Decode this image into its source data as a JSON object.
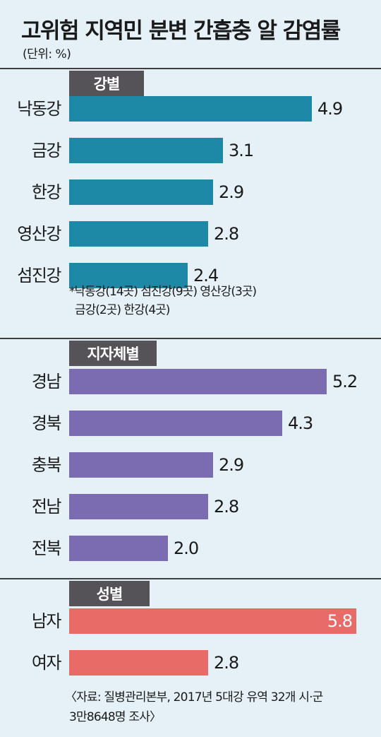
{
  "title": "고위험 지역민 분변 간흡충 알 감염률",
  "unit": "(단위: %)",
  "note_line1": "*낙동강(14곳) 섬진강(9곳) 영산강(3곳)",
  "note_line2": "금강(2곳) 한강(4곳)",
  "source_line1": "〈자료: 질병관리본부, 2017년 5대강 유역 32개 시·군",
  "source_line2": "3만8648명 조사〉",
  "colors": {
    "river": "#1e89a6",
    "region": "#7b6bb0",
    "gender": "#e86b67",
    "tag": "#555358",
    "background": "#e5f1f7"
  },
  "chart_data": [
    {
      "type": "bar",
      "orientation": "horizontal",
      "group": "강별",
      "categories": [
        "낙동강",
        "금강",
        "한강",
        "영산강",
        "섬진강"
      ],
      "values": [
        4.9,
        3.1,
        2.9,
        2.8,
        2.4
      ],
      "value_labels": [
        "4.9",
        "3.1",
        "2.9",
        "2.8",
        "2.4"
      ],
      "color": "#1e89a6"
    },
    {
      "type": "bar",
      "orientation": "horizontal",
      "group": "지자체별",
      "categories": [
        "경남",
        "경북",
        "충북",
        "전남",
        "전북"
      ],
      "values": [
        5.2,
        4.3,
        2.9,
        2.8,
        2.0
      ],
      "value_labels": [
        "5.2",
        "4.3",
        "2.9",
        "2.8",
        "2.0"
      ],
      "color": "#7b6bb0"
    },
    {
      "type": "bar",
      "orientation": "horizontal",
      "group": "성별",
      "categories": [
        "남자",
        "여자"
      ],
      "values": [
        5.8,
        2.8
      ],
      "value_labels": [
        "5.8",
        "2.8"
      ],
      "color": "#e86b67"
    }
  ]
}
